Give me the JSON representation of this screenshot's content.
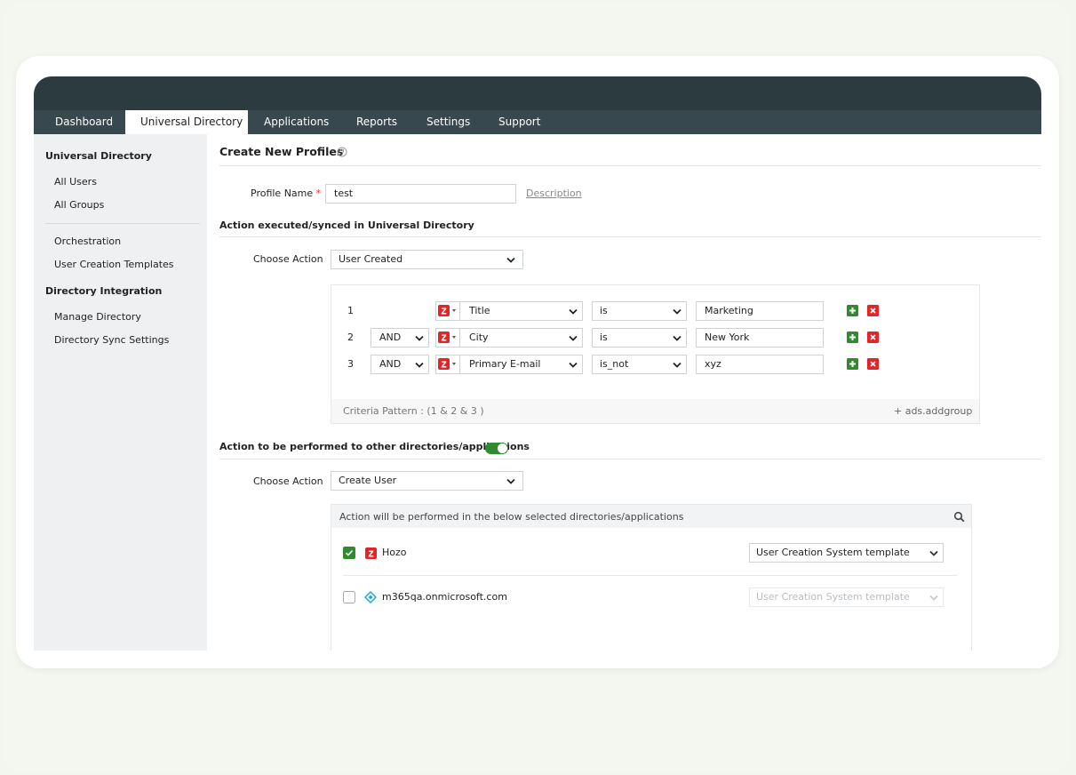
{
  "nav": {
    "tabs": [
      "Dashboard",
      "Universal Directory",
      "Applications",
      "Reports",
      "Settings",
      "Support"
    ]
  },
  "sidebar": {
    "sections": [
      {
        "heading": "Universal Directory",
        "items": [
          "All Users",
          "All Groups"
        ]
      },
      {
        "items": [
          "Orchestration",
          "User Creation Templates"
        ]
      },
      {
        "heading": "Directory Integration",
        "items": [
          "Manage Directory",
          "Directory Sync Settings"
        ]
      }
    ]
  },
  "form": {
    "title": "Create New Profiles",
    "profile_name": {
      "label": "Profile Name",
      "required": "*",
      "value": "test",
      "link": "Description"
    },
    "section1": {
      "heading": "Action executed/synced in Universal Directory",
      "choose_label": "Choose Action",
      "choose_value": "User Created"
    },
    "criteria": {
      "rows": [
        {
          "index": 1,
          "field": "Title",
          "condition": "is",
          "value": "Marketing"
        },
        {
          "index": 2,
          "join": "AND",
          "field": "City",
          "condition": "is",
          "value": "New York"
        },
        {
          "index": 3,
          "join": "AND",
          "field": "Primary E-mail",
          "condition": "is_not",
          "value": "xyz"
        }
      ],
      "pattern": "Criteria Pattern : (1 & 2 & 3 )",
      "add_group": "+ ads.addgroup"
    },
    "section2": {
      "heading": "Action to be performed to other directories/applications",
      "toggle_on": true,
      "choose_label": "Choose Action",
      "choose_value": "Create User"
    },
    "targets": {
      "header": "Action will be performed in the below selected directories/applications",
      "items": [
        {
          "name": "Hozo",
          "checked": true,
          "template": "User Creation System template"
        },
        {
          "name": "m365qa.onmicrosoft.com",
          "checked": false,
          "template": "User Creation System template"
        }
      ]
    }
  }
}
